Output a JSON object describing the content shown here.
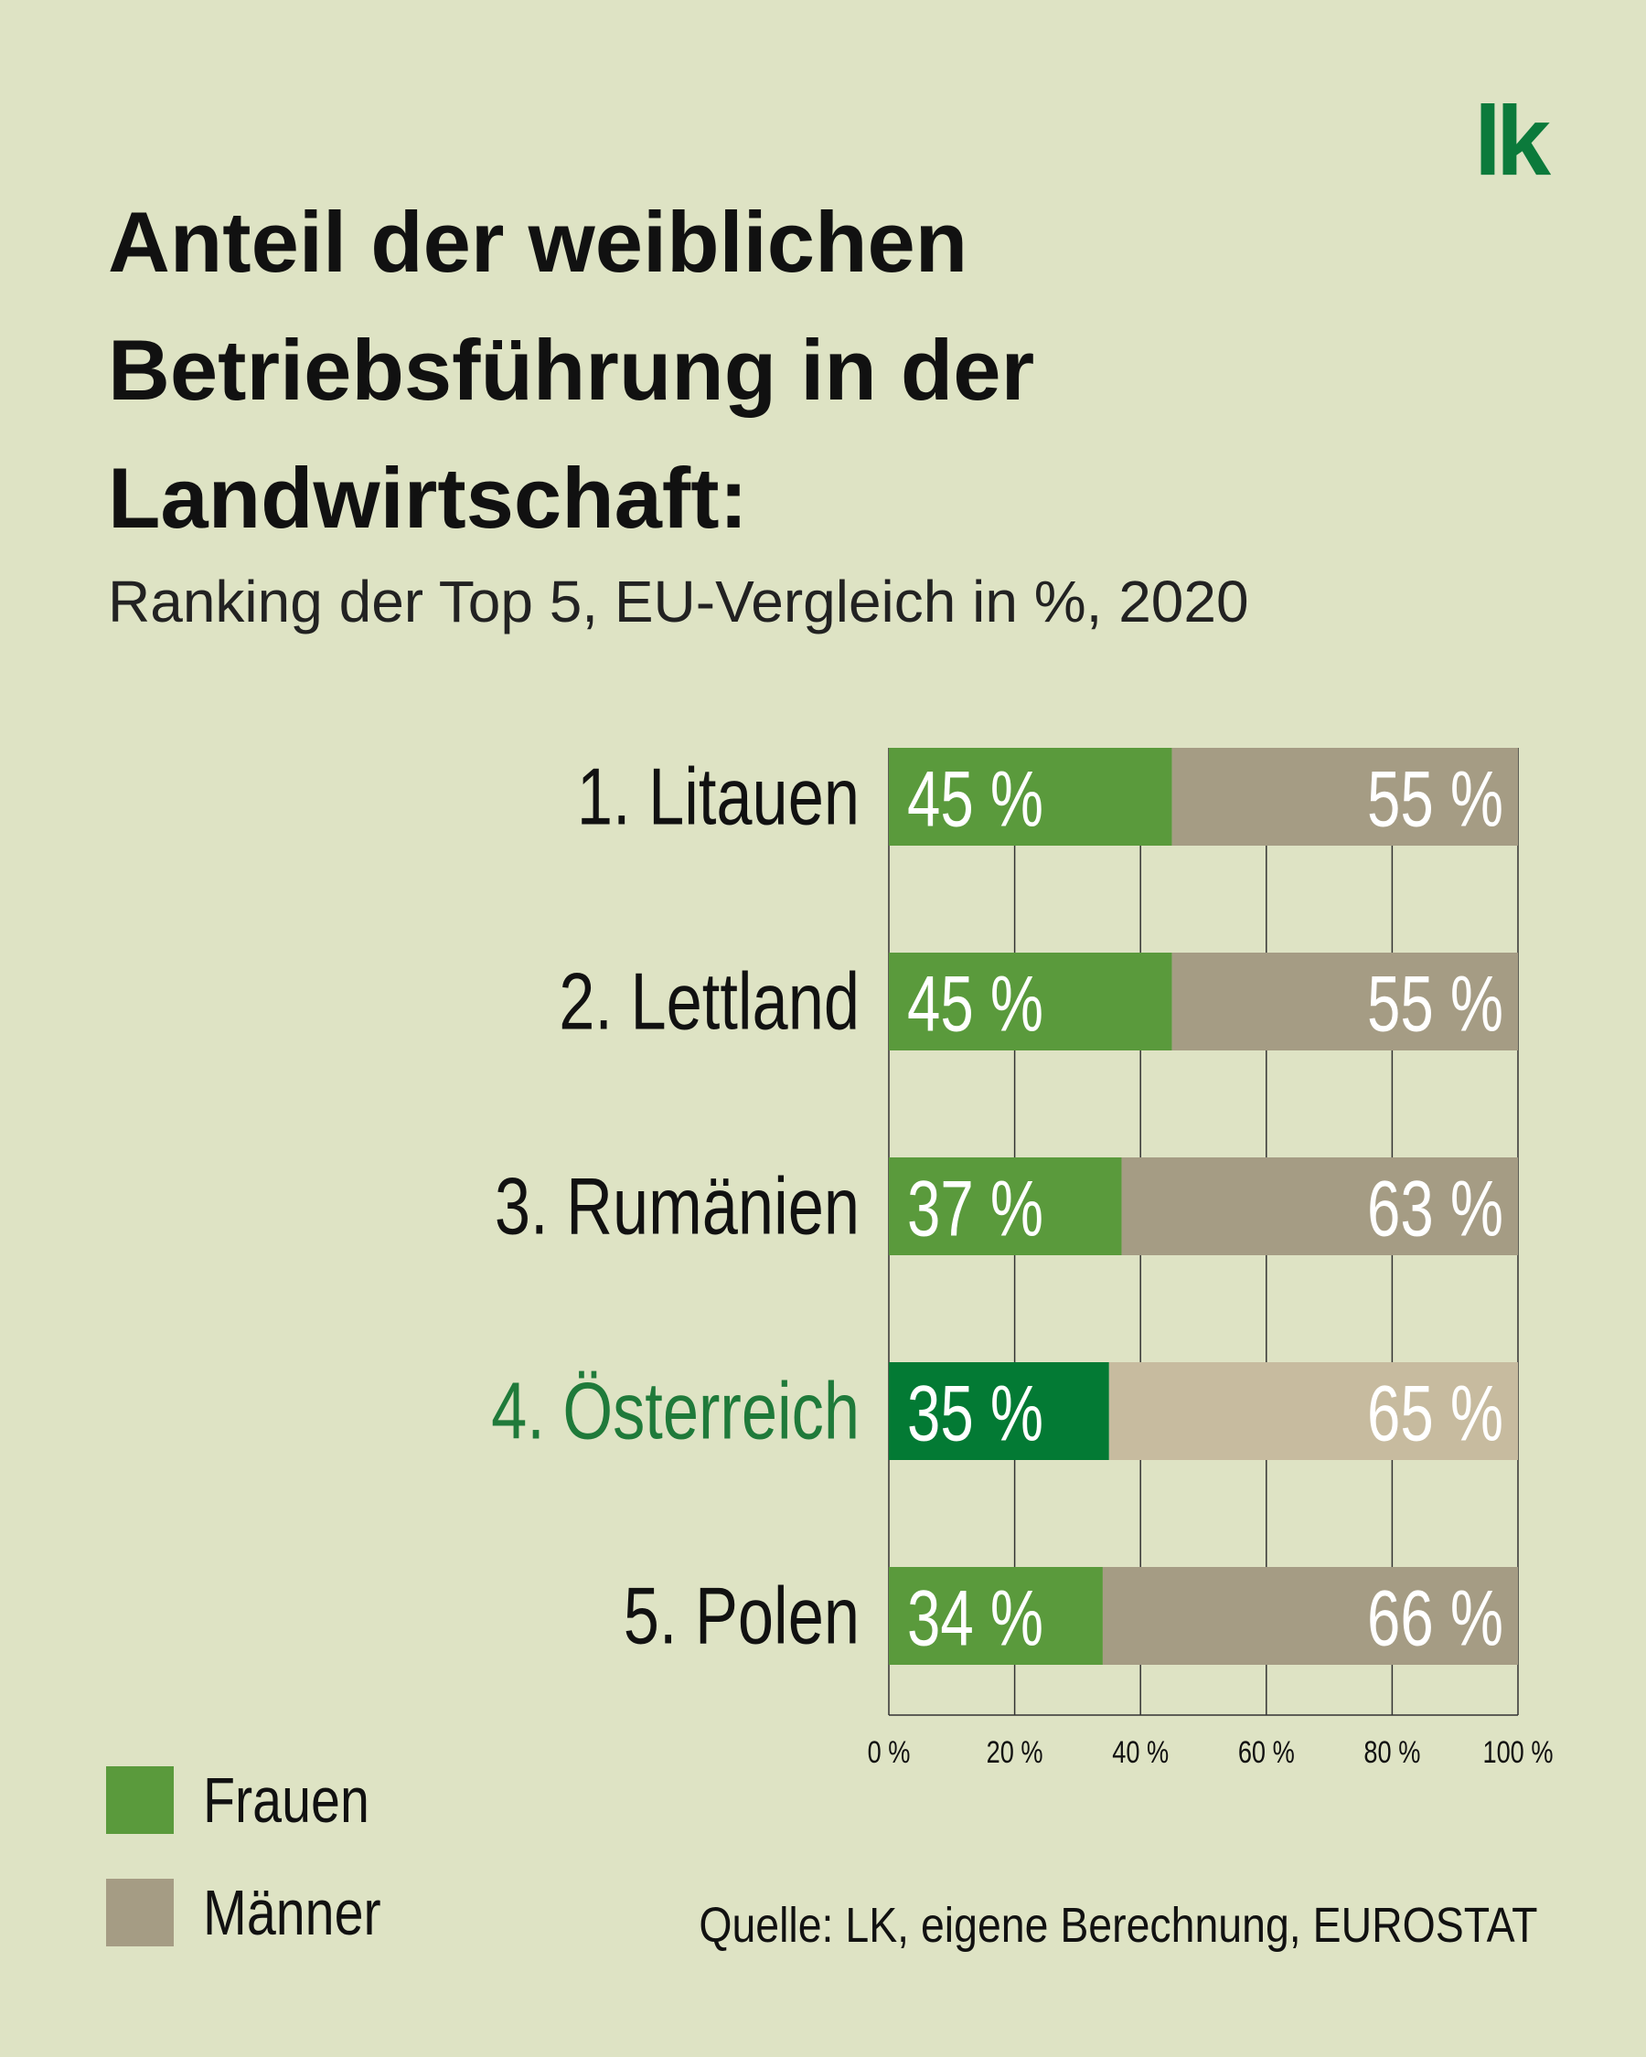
{
  "logo": "lk",
  "title_lines": [
    "Anteil der weiblichen",
    "Betriebsführung in der",
    "Landwirtschaft:"
  ],
  "subtitle": "Ranking der Top 5, EU-Vergleich in %, 2020",
  "source": "Quelle: LK, eigene Berechnung, EUROSTAT",
  "legend": [
    {
      "label": "Frauen",
      "color": "#5a9a3c"
    },
    {
      "label": "Männer",
      "color": "#a59c84"
    }
  ],
  "chart_data": {
    "type": "bar",
    "orientation": "horizontal",
    "stacked": true,
    "categories": [
      "1. Litauen",
      "2. Lettland",
      "3. Rumänien",
      "4. Österreich",
      "5. Polen"
    ],
    "series": [
      {
        "name": "Frauen",
        "values": [
          45,
          45,
          37,
          35,
          34
        ],
        "labels": [
          "45 %",
          "45 %",
          "37 %",
          "35 %",
          "34 %"
        ]
      },
      {
        "name": "Männer",
        "values": [
          55,
          55,
          63,
          65,
          66
        ],
        "labels": [
          "55 %",
          "55 %",
          "63 %",
          "65 %",
          "66 %"
        ]
      }
    ],
    "xlim": [
      0,
      100
    ],
    "x_ticks": [
      0,
      20,
      40,
      60,
      80,
      100
    ],
    "x_tick_labels": [
      "0 %",
      "20 %",
      "40 %",
      "60 %",
      "80 %",
      "100 %"
    ],
    "grid": true,
    "highlight_index": 3,
    "colors": {
      "frauen": "#5a9a3c",
      "maenner": "#a59c84",
      "frauen_highlight": "#037a34",
      "maenner_highlight": "#c7bb9f",
      "highlight_text": "#1f7a3a",
      "grid": "#333333"
    }
  }
}
